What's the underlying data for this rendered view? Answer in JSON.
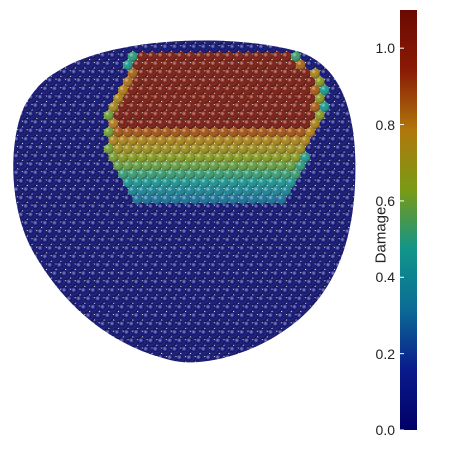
{
  "figure": {
    "description_colors": {
      "background": "#ffffff",
      "undamaged": "#0a1580",
      "damaged": "#b01a05"
    }
  },
  "colorbar": {
    "title": "Damage",
    "ticks": [
      {
        "label": "0.0",
        "value": 0.0
      },
      {
        "label": "0.2",
        "value": 0.2
      },
      {
        "label": "0.4",
        "value": 0.4
      },
      {
        "label": "0.6",
        "value": 0.6
      },
      {
        "label": "0.8",
        "value": 0.8
      },
      {
        "label": "1.0",
        "value": 1.0
      }
    ],
    "range": [
      0.0,
      1.1
    ],
    "colormap": "jet-like",
    "colors": [
      "#000066",
      "#0a1a8c",
      "#0b6b96",
      "#10958a",
      "#7a9a15",
      "#b0780c",
      "#8a1a05",
      "#6a0a02"
    ]
  }
}
